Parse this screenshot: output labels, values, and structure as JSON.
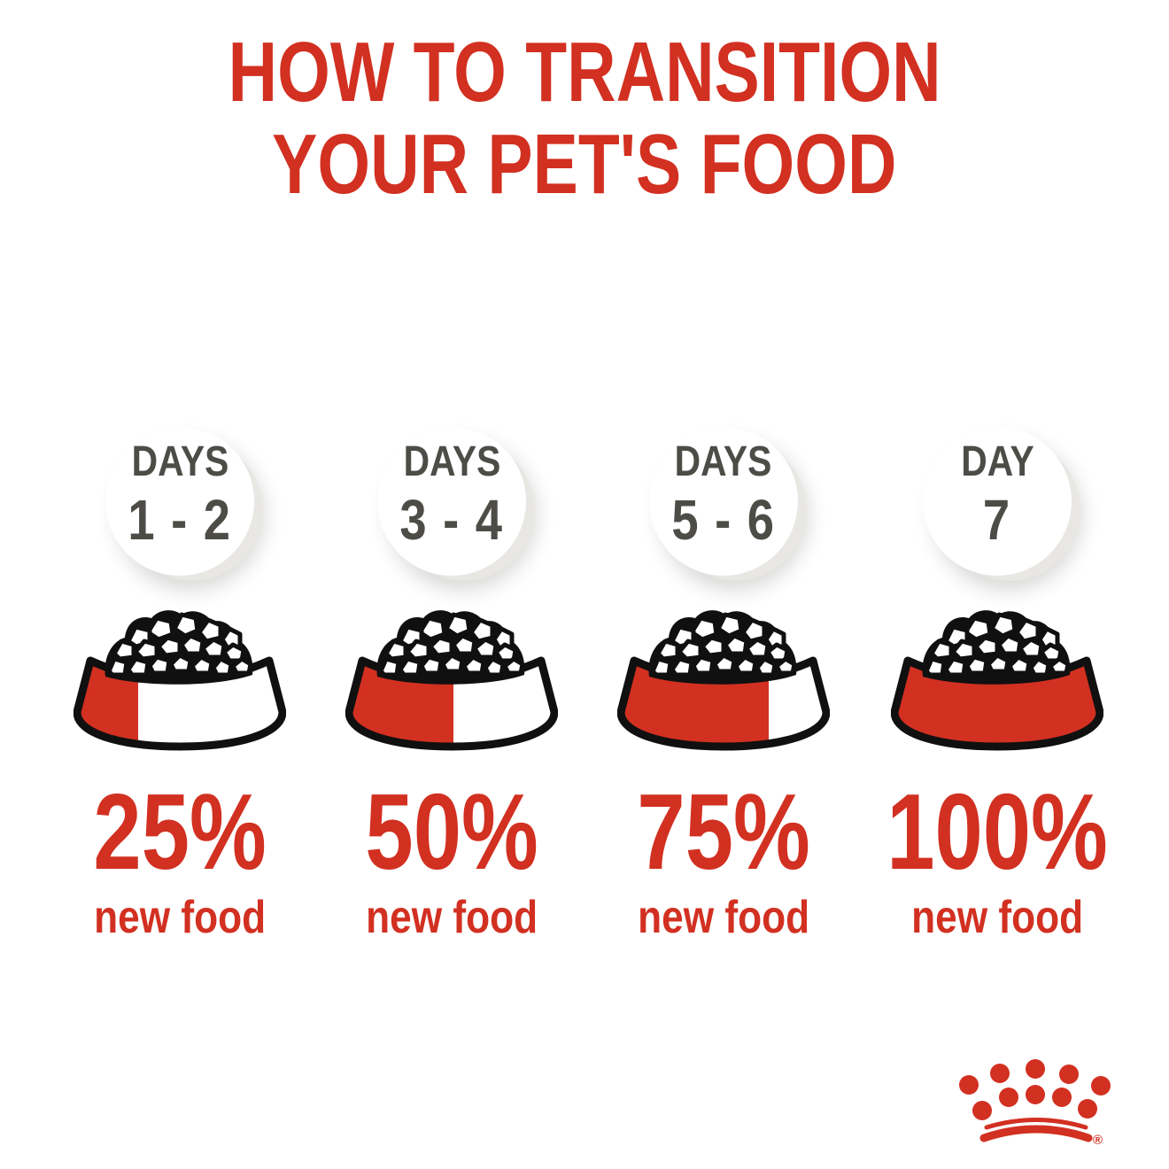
{
  "title": {
    "line1": "HOW TO TRANSITION",
    "line2": "YOUR PET'S FOOD"
  },
  "steps": [
    {
      "day_label": "DAYS",
      "day_range": "1 - 2",
      "new_food_percent": 25,
      "percent_label": "25%",
      "caption": "new food"
    },
    {
      "day_label": "DAYS",
      "day_range": "3 - 4",
      "new_food_percent": 50,
      "percent_label": "50%",
      "caption": "new food"
    },
    {
      "day_label": "DAYS",
      "day_range": "5 - 6",
      "new_food_percent": 75,
      "percent_label": "75%",
      "caption": "new food"
    },
    {
      "day_label": "DAY",
      "day_range": "7",
      "new_food_percent": 100,
      "percent_label": "100%",
      "caption": "new food"
    }
  ],
  "brand": {
    "logo": "royal-canin-crown",
    "registered_mark": "®"
  },
  "colors": {
    "red": "#d23021",
    "dark_gray": "#4d4c47",
    "outline_black": "#101010"
  }
}
